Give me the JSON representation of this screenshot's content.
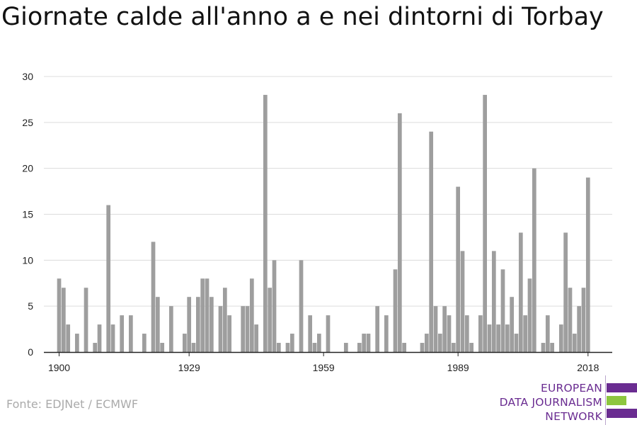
{
  "title": "Giornate calde all'anno a e nei dintorni di Torbay",
  "source": "Fonte: EDJNet / ECMWF",
  "logo": {
    "lines": [
      "EUROPEAN",
      "DATA JOURNALISM",
      "NETWORK"
    ],
    "colors": {
      "purple": "#6a2c91",
      "green": "#8dc63f"
    }
  },
  "chart_data": {
    "type": "bar",
    "x_start": 1900,
    "x": [
      1900,
      1901,
      1902,
      1903,
      1904,
      1905,
      1906,
      1907,
      1908,
      1909,
      1910,
      1911,
      1912,
      1913,
      1914,
      1915,
      1916,
      1917,
      1918,
      1919,
      1920,
      1921,
      1922,
      1923,
      1924,
      1925,
      1926,
      1927,
      1928,
      1929,
      1930,
      1931,
      1932,
      1933,
      1934,
      1935,
      1936,
      1937,
      1938,
      1939,
      1940,
      1941,
      1942,
      1943,
      1944,
      1945,
      1946,
      1947,
      1948,
      1949,
      1950,
      1951,
      1952,
      1953,
      1954,
      1955,
      1956,
      1957,
      1958,
      1959,
      1960,
      1961,
      1962,
      1963,
      1964,
      1965,
      1966,
      1967,
      1968,
      1969,
      1970,
      1971,
      1972,
      1973,
      1974,
      1975,
      1976,
      1977,
      1978,
      1979,
      1980,
      1981,
      1982,
      1983,
      1984,
      1985,
      1986,
      1987,
      1988,
      1989,
      1990,
      1991,
      1992,
      1993,
      1994,
      1995,
      1996,
      1997,
      1998,
      1999,
      2000,
      2001,
      2002,
      2003,
      2004,
      2005,
      2006,
      2007,
      2008,
      2009,
      2010,
      2011,
      2012,
      2013,
      2014,
      2015,
      2016,
      2017,
      2018
    ],
    "values": [
      8,
      7,
      3,
      0,
      2,
      0,
      7,
      0,
      1,
      3,
      0,
      16,
      3,
      0,
      4,
      0,
      4,
      0,
      0,
      2,
      0,
      12,
      6,
      1,
      0,
      5,
      0,
      0,
      2,
      6,
      1,
      6,
      8,
      8,
      6,
      0,
      5,
      7,
      4,
      0,
      0,
      5,
      5,
      8,
      3,
      0,
      28,
      7,
      10,
      1,
      0,
      1,
      2,
      0,
      10,
      0,
      4,
      1,
      2,
      0,
      4,
      0,
      0,
      0,
      1,
      0,
      0,
      1,
      2,
      2,
      0,
      5,
      0,
      4,
      0,
      9,
      26,
      1,
      0,
      0,
      0,
      1,
      2,
      24,
      5,
      2,
      5,
      4,
      1,
      18,
      11,
      4,
      1,
      0,
      4,
      28,
      3,
      11,
      3,
      9,
      3,
      6,
      2,
      13,
      4,
      8,
      20,
      0,
      1,
      4,
      1,
      0,
      3,
      13,
      7,
      2,
      5,
      7,
      19
    ],
    "x_tick_labels": [
      "1900",
      "1929",
      "1959",
      "1989",
      "2018"
    ],
    "y_ticks": [
      0,
      5,
      10,
      15,
      20,
      25,
      30
    ],
    "ylim": [
      0,
      30
    ],
    "xlabel": "",
    "ylabel": "",
    "grid": true,
    "colors": {
      "bar": "#9e9e9e",
      "grid": "#dcdcdc",
      "axis": "#222222",
      "text": "#222222"
    }
  }
}
